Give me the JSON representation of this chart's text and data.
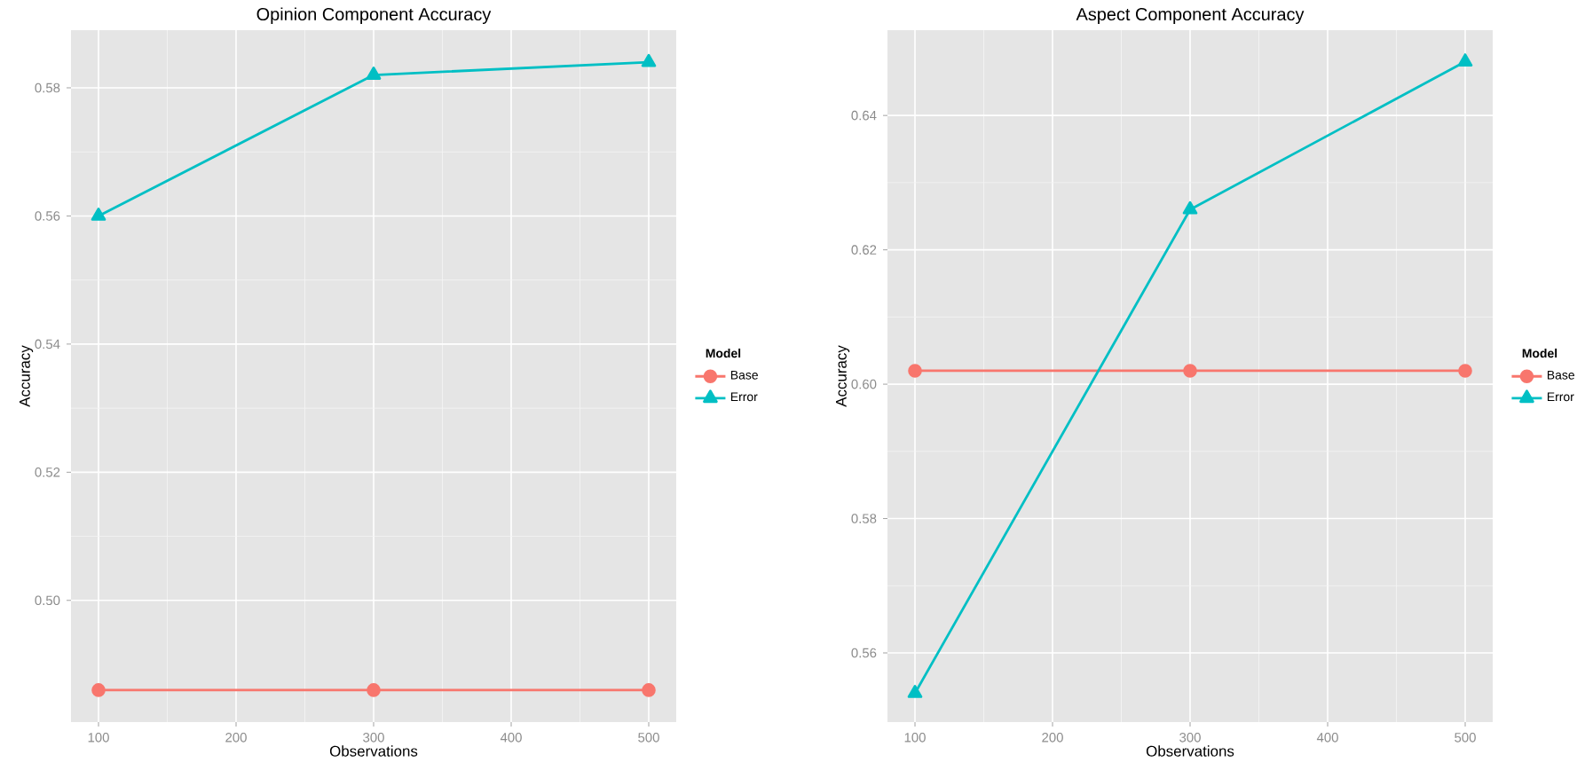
{
  "chart_data": [
    {
      "type": "line",
      "title": "Opinion Component Accuracy",
      "xlabel": "Observations",
      "ylabel": "Accuracy",
      "legend_title": "Model",
      "x": [
        100,
        300,
        500
      ],
      "xlim": [
        80,
        520
      ],
      "xticks": [
        100,
        200,
        300,
        400,
        500
      ],
      "ylim": [
        0.481,
        0.589
      ],
      "yticks": [
        {
          "value": 0.5,
          "label": "0.50"
        },
        0.52,
        0.54,
        0.56,
        0.58
      ],
      "grid": true,
      "legend": "right",
      "series": [
        {
          "name": "Base",
          "color": "#f8766d",
          "marker": "circle",
          "values": [
            0.486,
            0.486,
            0.486
          ]
        },
        {
          "name": "Error",
          "color": "#00bfc4",
          "marker": "triangle",
          "values": [
            0.56,
            0.582,
            0.584
          ]
        }
      ]
    },
    {
      "type": "line",
      "title": "Aspect Component Accuracy",
      "xlabel": "Observations",
      "ylabel": "Accuracy",
      "legend_title": "Model",
      "x": [
        100,
        300,
        500
      ],
      "xlim": [
        80,
        520
      ],
      "xticks": [
        100,
        200,
        300,
        400,
        500
      ],
      "ylim": [
        0.5497,
        0.6527
      ],
      "yticks": [
        0.56,
        0.58,
        {
          "value": 0.6,
          "label": "0.60"
        },
        0.62,
        0.64
      ],
      "grid": true,
      "legend": "right",
      "series": [
        {
          "name": "Base",
          "color": "#f8766d",
          "marker": "circle",
          "values": [
            0.602,
            0.602,
            0.602
          ]
        },
        {
          "name": "Error",
          "color": "#00bfc4",
          "marker": "triangle",
          "values": [
            0.554,
            0.626,
            0.648
          ]
        }
      ]
    }
  ]
}
